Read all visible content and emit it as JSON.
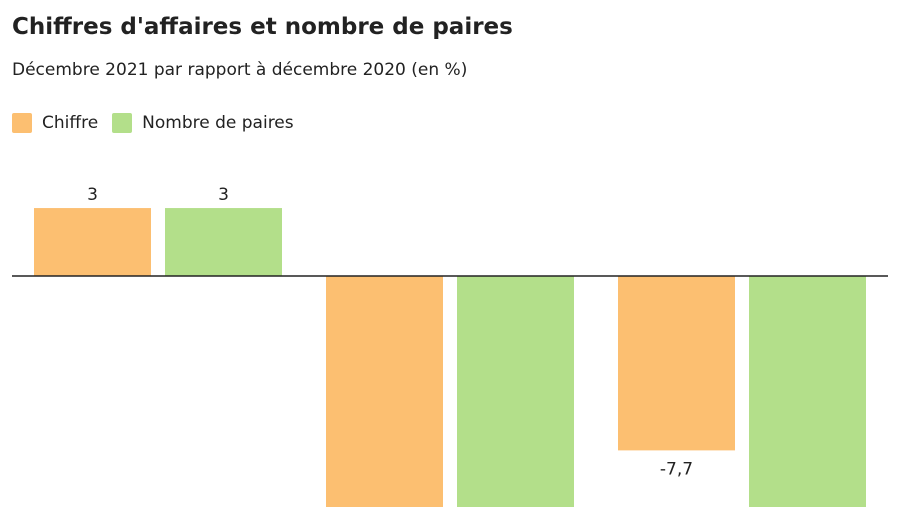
{
  "title": "Chiffres d'affaires et nombre de paires",
  "subtitle": "Décembre 2021 par rapport à décembre 2020 (en %)",
  "colors": {
    "chiffre": "#fcbf71",
    "paires": "#b3df8a",
    "axis": "#222222"
  },
  "chart_data": {
    "type": "bar",
    "title": "Chiffres d'affaires et nombre de paires",
    "subtitle": "Décembre 2021 par rapport à décembre 2020 (en %)",
    "categories": [
      "",
      "",
      ""
    ],
    "series": [
      {
        "name": "Chiffre",
        "color": "#fcbf71",
        "values": [
          3,
          -10.2,
          -7.7
        ],
        "labels": [
          "3",
          "",
          "-7,7"
        ]
      },
      {
        "name": "Nombre de paires",
        "color": "#b3df8a",
        "values": [
          3,
          -10.2,
          -10.2
        ],
        "labels": [
          "3",
          "",
          ""
        ]
      }
    ],
    "ylim": [
      -10.2,
      3.5
    ],
    "grid": false,
    "legend_position": "top-left",
    "xlabel": "",
    "ylabel": ""
  }
}
